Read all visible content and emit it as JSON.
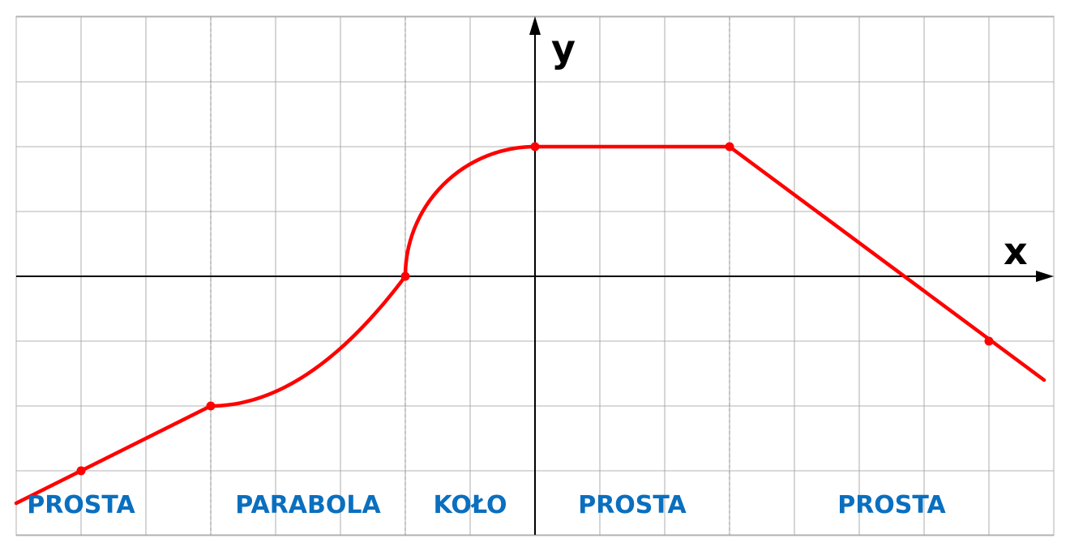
{
  "axes": {
    "x_label": "x",
    "y_label": "y",
    "x_range": [
      -8,
      8
    ],
    "y_range": [
      -4,
      4
    ]
  },
  "curve": {
    "color": "#ff0000",
    "segments": [
      {
        "type": "line",
        "from": [
          -8,
          -3.5
        ],
        "to": [
          -5,
          -2
        ]
      },
      {
        "type": "parabola",
        "from": [
          -5,
          -2
        ],
        "to": [
          -2,
          0
        ],
        "vertex": [
          -5,
          -2
        ]
      },
      {
        "type": "circle",
        "from": [
          -2,
          0
        ],
        "to": [
          0,
          2
        ],
        "center": [
          0,
          0
        ],
        "radius": 2
      },
      {
        "type": "line",
        "from": [
          0,
          2
        ],
        "to": [
          3,
          2
        ]
      },
      {
        "type": "line",
        "from": [
          3,
          2
        ],
        "to": [
          7.85,
          -1.6
        ]
      }
    ],
    "points": [
      [
        -7,
        -3
      ],
      [
        -5,
        -2
      ],
      [
        -2,
        0
      ],
      [
        0,
        2
      ],
      [
        3,
        2
      ],
      [
        7,
        -1
      ]
    ]
  },
  "regions": [
    {
      "label": "PROSTA",
      "center_x": -7
    },
    {
      "label": "PARABOLA",
      "center_x": -3.5
    },
    {
      "label": "KOŁO",
      "center_x": -1
    },
    {
      "label": "PROSTA",
      "center_x": 1.5
    },
    {
      "label": "PROSTA",
      "center_x": 5.5
    }
  ],
  "region_boundaries_x": [
    -5,
    -2,
    3
  ],
  "label_color": "#0a6fbf"
}
